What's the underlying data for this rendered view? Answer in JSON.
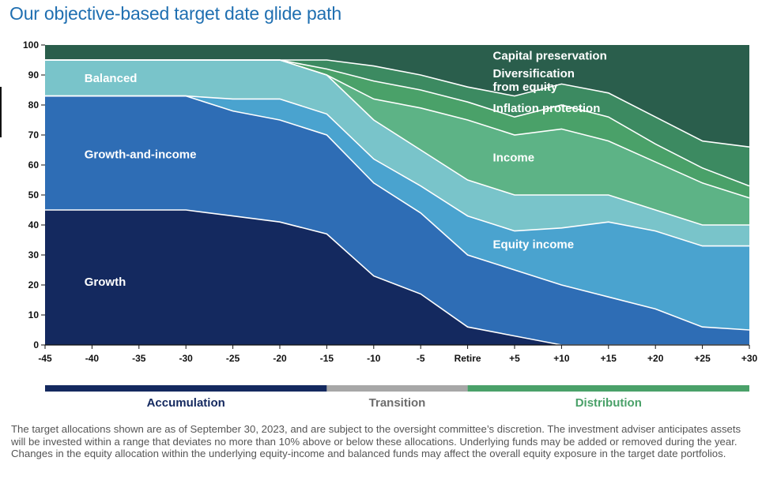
{
  "title": "Our objective-based target date glide path",
  "chart_data": {
    "type": "area",
    "stacked": true,
    "x": [
      -45,
      -40,
      -35,
      -30,
      -25,
      -20,
      -15,
      -10,
      -5,
      0,
      5,
      10,
      15,
      20,
      25,
      30
    ],
    "x_tick_labels": [
      "-45",
      "-40",
      "-35",
      "-30",
      "-25",
      "-20",
      "-15",
      "-10",
      "-5",
      "Retire",
      "+5",
      "+10",
      "+15",
      "+20",
      "+25",
      "+30"
    ],
    "y_ticks": [
      0,
      10,
      20,
      30,
      40,
      50,
      60,
      70,
      80,
      90,
      100
    ],
    "ylim": [
      0,
      100
    ],
    "series": [
      {
        "name": "Growth",
        "color": "#14295f",
        "values": [
          45,
          45,
          45,
          45,
          43,
          41,
          37,
          23,
          17,
          6,
          3,
          0,
          0,
          0,
          0,
          0
        ]
      },
      {
        "name": "Growth-and-income",
        "color": "#2e6db5",
        "values": [
          38,
          38,
          38,
          38,
          35,
          34,
          33,
          31,
          27,
          24,
          22,
          20,
          16,
          12,
          6,
          5
        ]
      },
      {
        "name": "Equity income",
        "color": "#4aa3cf",
        "values": [
          0,
          0,
          0,
          0,
          4,
          7,
          7,
          8,
          9,
          13,
          13,
          19,
          25,
          26,
          27,
          28
        ]
      },
      {
        "name": "Balanced",
        "color": "#79c4ca",
        "values": [
          12,
          12,
          12,
          12,
          13,
          13,
          13,
          13,
          12,
          12,
          12,
          11,
          9,
          7,
          7,
          7
        ]
      },
      {
        "name": "Income",
        "color": "#5db386",
        "values": [
          0,
          0,
          0,
          0,
          0,
          0,
          0,
          7,
          14,
          20,
          20,
          22,
          18,
          16,
          14,
          9
        ]
      },
      {
        "name": "Inflation protection",
        "color": "#4aa169",
        "values": [
          0,
          0,
          0,
          0,
          0,
          0,
          2,
          6,
          6,
          6,
          6,
          8,
          8,
          6,
          5,
          4
        ]
      },
      {
        "name": "Diversification from equity",
        "color": "#3c8a61",
        "values": [
          0,
          0,
          0,
          0,
          0,
          0,
          3,
          5,
          5,
          5,
          7,
          7,
          8,
          9,
          9,
          13
        ]
      },
      {
        "name": "Capital preservation",
        "color": "#2a5e4c",
        "values": [
          5,
          5,
          5,
          5,
          5,
          5,
          5,
          7,
          10,
          14,
          17,
          13,
          16,
          24,
          32,
          34
        ]
      }
    ],
    "area_labels": [
      {
        "text": "Capital preservation",
        "x": 0.5,
        "y": 96.5
      },
      {
        "text": "Diversification",
        "x": 0.5,
        "y": 90.5
      },
      {
        "text": "from equity",
        "x": 0.5,
        "y": 86
      },
      {
        "text": "Inflation protection",
        "x": 0.5,
        "y": 79
      },
      {
        "text": "Income",
        "x": 0.5,
        "y": 62.5
      },
      {
        "text": "Equity income",
        "x": 0.5,
        "y": 33.5
      },
      {
        "text": "Balanced",
        "x": -43,
        "y": 89
      },
      {
        "text": "Growth-and-income",
        "x": -43,
        "y": 63.5
      },
      {
        "text": "Growth",
        "x": -43,
        "y": 21
      }
    ],
    "phases": [
      {
        "name": "Accumulation",
        "from": -45,
        "to": -15,
        "color": "#14295f",
        "text_color": "#14295f"
      },
      {
        "name": "Transition",
        "from": -15,
        "to": 0,
        "color": "#a7a7a7",
        "text_color": "#6d6d6d"
      },
      {
        "name": "Distribution",
        "from": 0,
        "to": 30,
        "color": "#4aa169",
        "text_color": "#4aa169"
      }
    ]
  },
  "footnote": "The target allocations shown are as of September 30, 2023, and are subject to the oversight committee’s discretion. The investment adviser anticipates assets will be invested within a range that deviates no more than 10% above or below these allocations. Underlying funds may be added or removed during the year. Changes in the equity allocation within the underlying equity-income and balanced funds may affect the overall equity exposure in the target date portfolios."
}
